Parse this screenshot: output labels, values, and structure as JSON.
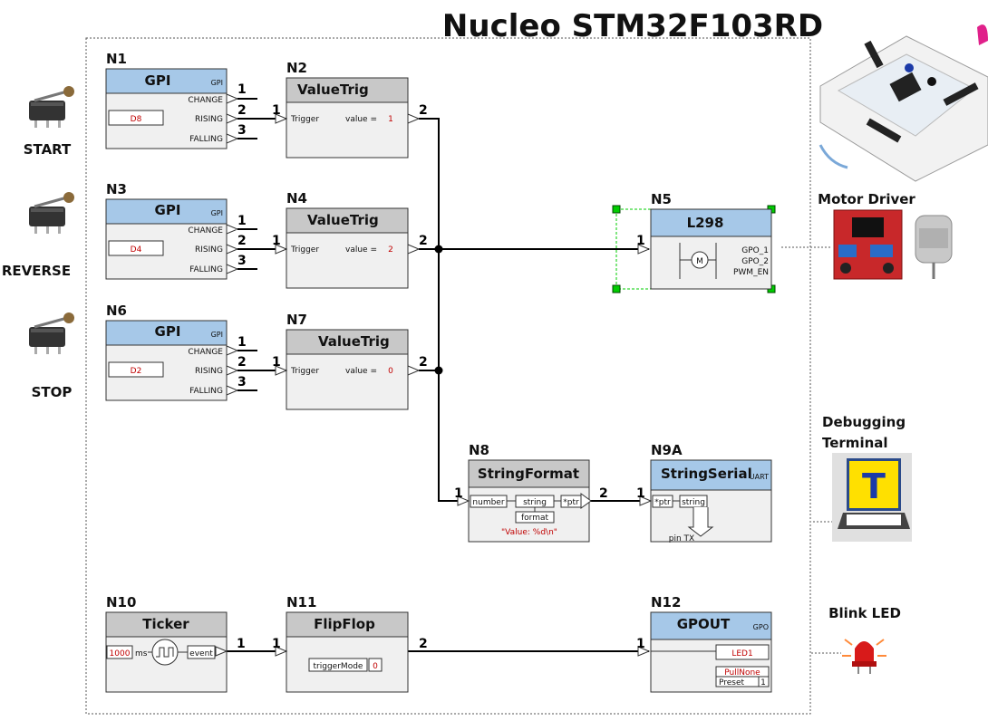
{
  "title": "Nucleo STM32F103RD",
  "switch_labels": {
    "start": "START",
    "reverse": "REVERSE",
    "stop": "STOP"
  },
  "side_labels": {
    "motor_driver": "Motor Driver",
    "debug_line1": "Debugging",
    "debug_line2": "Terminal",
    "blink_led": "Blink LED",
    "terminal_glyph": "T"
  },
  "nodes": {
    "n1": {
      "id": "N1",
      "title": "GPI",
      "corner": "GPI",
      "pin": "D8",
      "outs": [
        "CHANGE",
        "RISING",
        "FALLING"
      ]
    },
    "n3": {
      "id": "N3",
      "title": "GPI",
      "corner": "GPI",
      "pin": "D4",
      "outs": [
        "CHANGE",
        "RISING",
        "FALLING"
      ]
    },
    "n6": {
      "id": "N6",
      "title": "GPI",
      "corner": "GPI",
      "pin": "D2",
      "outs": [
        "CHANGE",
        "RISING",
        "FALLING"
      ]
    },
    "n2": {
      "id": "N2",
      "title": "ValueTrig",
      "input": "Trigger",
      "value_label": "value =",
      "value": "1"
    },
    "n4": {
      "id": "N4",
      "title": "ValueTrig",
      "input": "Trigger",
      "value_label": "value =",
      "value": "2"
    },
    "n7": {
      "id": "N7",
      "title": "ValueTrig",
      "input": "Trigger",
      "value_label": "value =",
      "value": "0"
    },
    "n5": {
      "id": "N5",
      "title": "L298",
      "motor_symbol": "M",
      "pins": [
        "GPO_1",
        "GPO_2",
        "PWM_EN"
      ]
    },
    "n8": {
      "id": "N8",
      "title": "StringFormat",
      "in": "number",
      "mid": "string",
      "out": "*ptr",
      "param": "format",
      "fmt": "\"Value: %d\\n\""
    },
    "n9a": {
      "id": "N9A",
      "title": "StringSerial",
      "corner": "UART",
      "in": "*ptr",
      "mid": "string",
      "out": "pin TX"
    },
    "n10": {
      "id": "N10",
      "title": "Ticker",
      "period": "1000",
      "unit": "ms",
      "out": "event"
    },
    "n11": {
      "id": "N11",
      "title": "FlipFlop",
      "param": "triggerMode",
      "value": "0"
    },
    "n12": {
      "id": "N12",
      "title": "GPOUT",
      "corner": "GPO",
      "pin": "LED1",
      "pull": "PullNone",
      "preset_label": "Preset",
      "preset": "1"
    }
  },
  "port_numbers": {
    "one": "1",
    "two": "2",
    "three": "3"
  },
  "colors": {
    "header": "#a6c8e8",
    "grey_header": "#c8c8c8",
    "body": "#f0f0f0",
    "value_red": "#c00000",
    "select_green": "#00cc00"
  }
}
